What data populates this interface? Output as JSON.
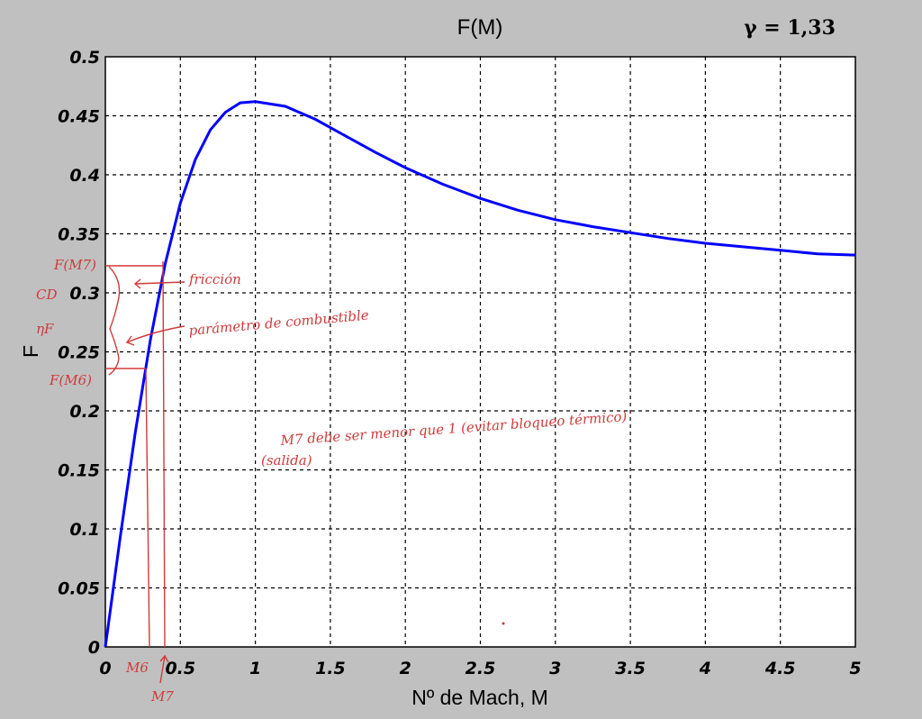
{
  "chart_data": {
    "type": "line",
    "title": "F(M)",
    "gamma_label": "γ = 1,33",
    "xlabel": "Nº de Mach, M",
    "ylabel": "F",
    "xlim": [
      0,
      5
    ],
    "ylim": [
      0,
      0.5
    ],
    "grid": true,
    "x_ticks": [
      "0",
      "0.5",
      "1",
      "1.5",
      "2",
      "2.5",
      "3",
      "3.5",
      "4",
      "4.5",
      "5"
    ],
    "y_ticks": [
      "0",
      "0.05",
      "0.1",
      "0.15",
      "0.2",
      "0.25",
      "0.3",
      "0.35",
      "0.4",
      "0.45",
      "0.5"
    ],
    "line_color": "#0000ff",
    "series": [
      {
        "x": [
          0,
          0.1,
          0.2,
          0.3,
          0.4,
          0.5,
          0.6,
          0.7,
          0.8,
          0.9,
          1.0,
          1.2,
          1.4,
          1.6,
          1.8,
          2.0,
          2.25,
          2.5,
          2.75,
          3.0,
          3.25,
          3.5,
          3.75,
          4.0,
          4.25,
          4.5,
          4.75,
          5.0
        ],
        "y": [
          0,
          0.094,
          0.182,
          0.26,
          0.325,
          0.376,
          0.413,
          0.438,
          0.453,
          0.461,
          0.462,
          0.458,
          0.447,
          0.433,
          0.419,
          0.406,
          0.392,
          0.38,
          0.37,
          0.362,
          0.356,
          0.351,
          0.346,
          0.342,
          0.339,
          0.336,
          0.333,
          0.332
        ]
      }
    ],
    "annotations": {
      "color": "#d03a3a",
      "labels": {
        "f_m7": "F(M7)",
        "f_m6": "F(M6)",
        "cd": "CD",
        "eta": "ηF",
        "friccion": "fricción",
        "parametro": "parámetro de combustible",
        "note": "M7 debe ser menor que 1 (evitar bloqueo térmico)",
        "salida": "(salida)",
        "m6": "M6",
        "m7": "M7"
      }
    }
  }
}
